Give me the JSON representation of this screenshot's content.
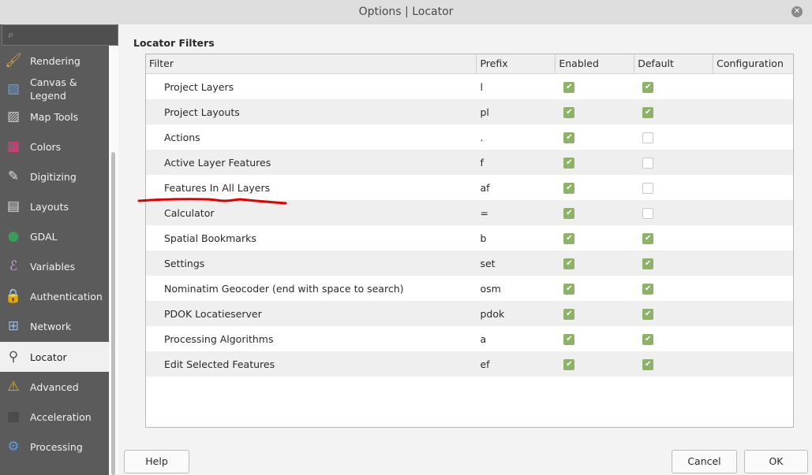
{
  "window": {
    "title": "Options | Locator"
  },
  "sidebar": {
    "search_placeholder": "",
    "items": [
      {
        "label": "Rendering",
        "icon": "brush-icon"
      },
      {
        "label": "Canvas &\nLegend",
        "icon": "canvas-icon"
      },
      {
        "label": "Map Tools",
        "icon": "map-tools-icon"
      },
      {
        "label": "Colors",
        "icon": "colors-icon"
      },
      {
        "label": "Digitizing",
        "icon": "digitizing-icon"
      },
      {
        "label": "Layouts",
        "icon": "layouts-icon"
      },
      {
        "label": "GDAL",
        "icon": "gdal-icon"
      },
      {
        "label": "Variables",
        "icon": "variables-icon"
      },
      {
        "label": "Authentication",
        "icon": "lock-icon"
      },
      {
        "label": "Network",
        "icon": "network-icon"
      },
      {
        "label": "Locator",
        "icon": "search-icon",
        "selected": true
      },
      {
        "label": "Advanced",
        "icon": "warning-icon"
      },
      {
        "label": "Acceleration",
        "icon": "chip-icon"
      },
      {
        "label": "Processing",
        "icon": "gear-icon"
      }
    ]
  },
  "main": {
    "group_title": "Locator Filters",
    "columns": [
      "Filter",
      "Prefix",
      "Enabled",
      "Default",
      "Configuration"
    ],
    "rows": [
      {
        "filter": "Project Layers",
        "prefix": "l",
        "enabled": true,
        "default": true
      },
      {
        "filter": "Project Layouts",
        "prefix": "pl",
        "enabled": true,
        "default": true
      },
      {
        "filter": "Actions",
        "prefix": ".",
        "enabled": true,
        "default": false
      },
      {
        "filter": "Active Layer Features",
        "prefix": "f",
        "enabled": true,
        "default": false
      },
      {
        "filter": "Features In All Layers",
        "prefix": "af",
        "enabled": true,
        "default": false
      },
      {
        "filter": "Calculator",
        "prefix": "=",
        "enabled": true,
        "default": false
      },
      {
        "filter": "Spatial Bookmarks",
        "prefix": "b",
        "enabled": true,
        "default": true
      },
      {
        "filter": "Settings",
        "prefix": "set",
        "enabled": true,
        "default": true
      },
      {
        "filter": "Nominatim Geocoder (end with space to search)",
        "prefix": "osm",
        "enabled": true,
        "default": true
      },
      {
        "filter": "PDOK Locatieserver",
        "prefix": "pdok",
        "enabled": true,
        "default": true
      },
      {
        "filter": "Processing Algorithms",
        "prefix": "a",
        "enabled": true,
        "default": true
      },
      {
        "filter": "Edit Selected Features",
        "prefix": "ef",
        "enabled": true,
        "default": true
      }
    ]
  },
  "buttons": {
    "help": "Help",
    "cancel": "Cancel",
    "ok": "OK"
  },
  "colors": {
    "checkbox_on": "#8fb26a",
    "sidebar_bg": "#5b5b5b",
    "annotation": "#e00000"
  }
}
